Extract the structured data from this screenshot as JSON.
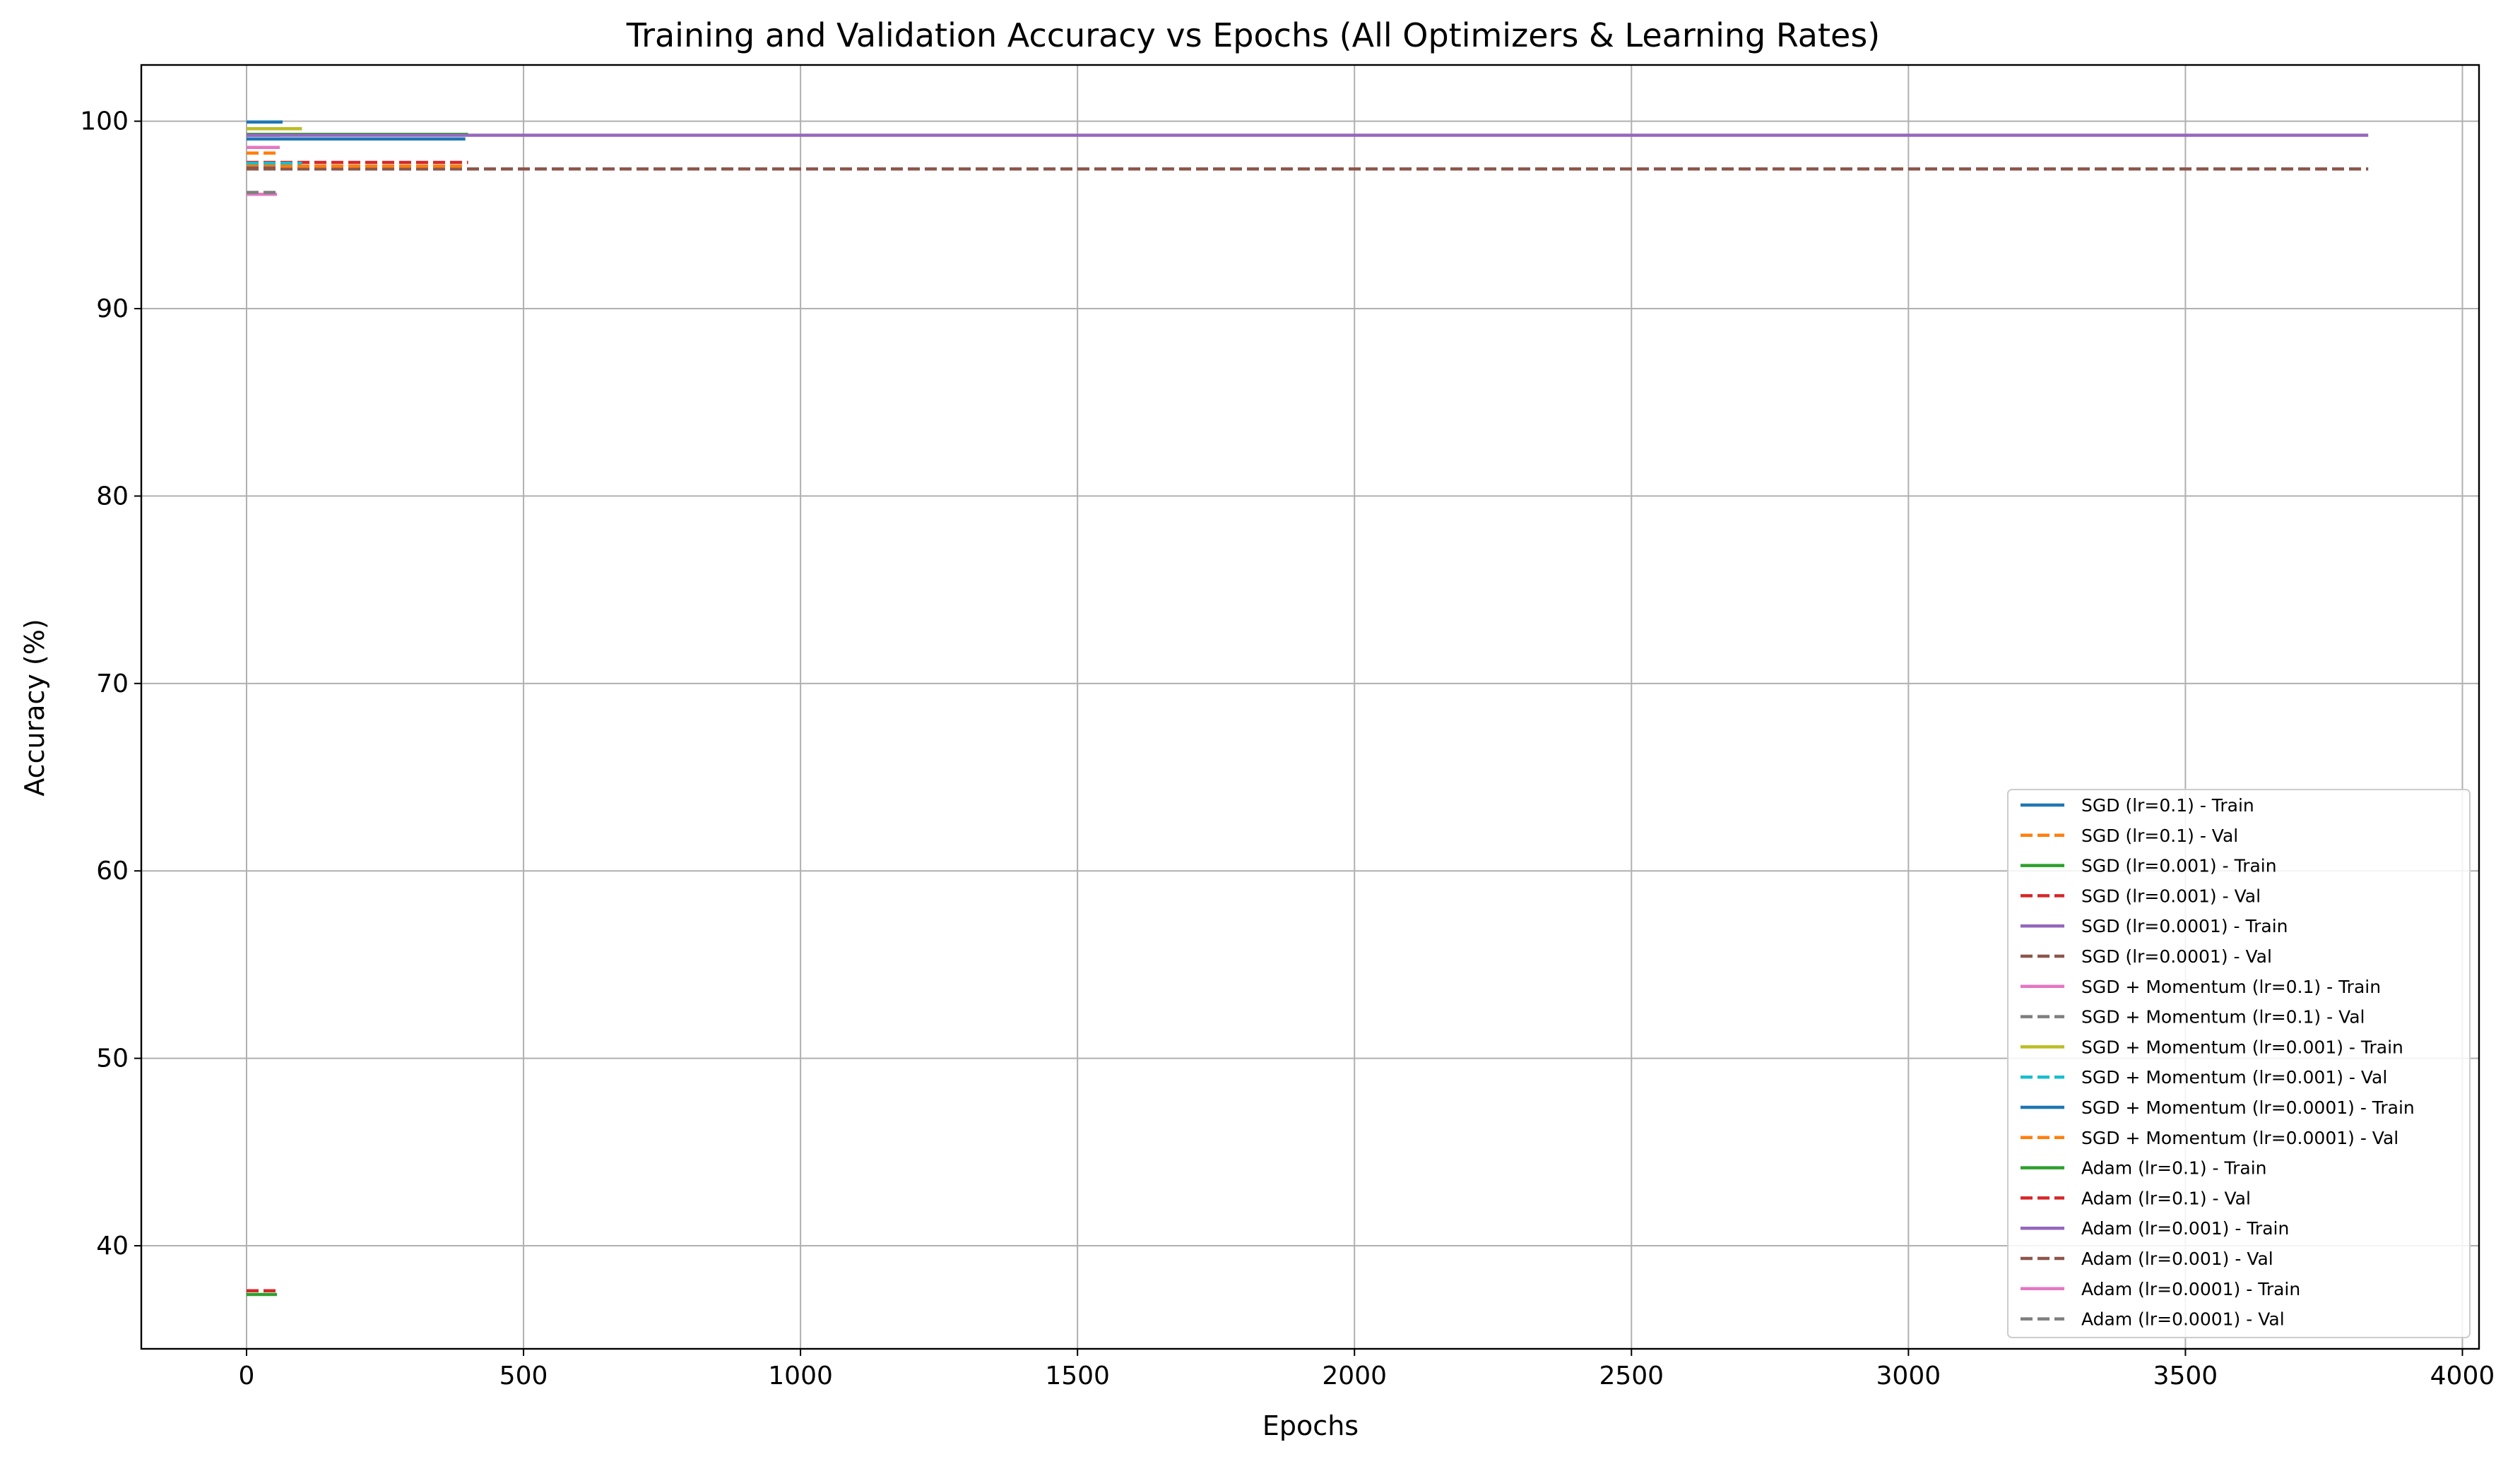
{
  "chart_data": {
    "type": "line",
    "title": "Training and Validation Accuracy vs Epochs (All Optimizers & Learning Rates)",
    "xlabel": "Epochs",
    "ylabel": "Accuracy (%)",
    "xlim": [
      -190,
      4030
    ],
    "ylim": [
      34.5,
      103
    ],
    "xticks": [
      0,
      500,
      1000,
      1500,
      2000,
      2500,
      3000,
      3500,
      4000
    ],
    "yticks": [
      40,
      50,
      60,
      70,
      80,
      90,
      100
    ],
    "grid": true,
    "legend_position": "lower-right",
    "series": [
      {
        "name": "SGD (lr=0.1) - Train",
        "color": "#1f77b4",
        "dash": "solid",
        "points": [
          [
            0,
            99.96
          ],
          [
            65,
            99.96
          ]
        ]
      },
      {
        "name": "SGD (lr=0.1) - Val",
        "color": "#ff7f0e",
        "dash": "dashed",
        "points": [
          [
            0,
            98.3
          ],
          [
            60,
            98.3
          ]
        ]
      },
      {
        "name": "SGD (lr=0.001) - Train",
        "color": "#2ca02c",
        "dash": "solid",
        "points": [
          [
            0,
            99.3
          ],
          [
            400,
            99.3
          ]
        ]
      },
      {
        "name": "SGD (lr=0.001) - Val",
        "color": "#d62728",
        "dash": "dashed",
        "points": [
          [
            0,
            97.8
          ],
          [
            400,
            97.8
          ]
        ]
      },
      {
        "name": "SGD (lr=0.0001) - Train",
        "color": "#9467bd",
        "dash": "solid",
        "points": [
          [
            0,
            99.25
          ],
          [
            3830,
            99.25
          ]
        ]
      },
      {
        "name": "SGD (lr=0.0001) - Val",
        "color": "#8c564b",
        "dash": "dashed",
        "points": [
          [
            0,
            97.45
          ],
          [
            3830,
            97.45
          ]
        ]
      },
      {
        "name": "SGD + Momentum (lr=0.1) - Train",
        "color": "#e377c2",
        "dash": "solid",
        "points": [
          [
            0,
            98.6
          ],
          [
            60,
            98.6
          ]
        ]
      },
      {
        "name": "SGD + Momentum (lr=0.1) - Val",
        "color": "#7f7f7f",
        "dash": "dashed",
        "points": [
          [
            0,
            97.5
          ],
          [
            60,
            97.5
          ]
        ]
      },
      {
        "name": "SGD + Momentum (lr=0.001) - Train",
        "color": "#bcbd22",
        "dash": "solid",
        "points": [
          [
            0,
            99.6
          ],
          [
            100,
            99.6
          ]
        ]
      },
      {
        "name": "SGD + Momentum (lr=0.001) - Val",
        "color": "#17becf",
        "dash": "dashed",
        "points": [
          [
            0,
            97.75
          ],
          [
            100,
            97.75
          ]
        ]
      },
      {
        "name": "SGD + Momentum (lr=0.0001) - Train",
        "color": "#1f77b4",
        "dash": "solid",
        "points": [
          [
            0,
            99.05
          ],
          [
            395,
            99.05
          ]
        ]
      },
      {
        "name": "SGD + Momentum (lr=0.0001) - Val",
        "color": "#ff7f0e",
        "dash": "dashed",
        "points": [
          [
            0,
            97.6
          ],
          [
            395,
            97.6
          ]
        ]
      },
      {
        "name": "Adam (lr=0.1) - Train",
        "color": "#2ca02c",
        "dash": "solid",
        "points": [
          [
            0,
            37.4
          ],
          [
            55,
            37.4
          ]
        ]
      },
      {
        "name": "Adam (lr=0.1) - Val",
        "color": "#d62728",
        "dash": "dashed",
        "points": [
          [
            0,
            37.6
          ],
          [
            55,
            37.6
          ]
        ]
      },
      {
        "name": "Adam (lr=0.001) - Train",
        "color": "#9467bd",
        "dash": "solid",
        "points": [
          [
            0,
            99.25
          ],
          [
            60,
            99.25
          ]
        ]
      },
      {
        "name": "Adam (lr=0.001) - Val",
        "color": "#8c564b",
        "dash": "dashed",
        "points": [
          [
            0,
            97.5
          ],
          [
            60,
            97.5
          ]
        ]
      },
      {
        "name": "Adam (lr=0.0001) - Train",
        "color": "#e377c2",
        "dash": "solid",
        "points": [
          [
            0,
            96.1
          ],
          [
            55,
            96.1
          ]
        ]
      },
      {
        "name": "Adam (lr=0.0001) - Val",
        "color": "#7f7f7f",
        "dash": "dashed",
        "points": [
          [
            0,
            96.2
          ],
          [
            55,
            96.2
          ]
        ]
      }
    ]
  }
}
